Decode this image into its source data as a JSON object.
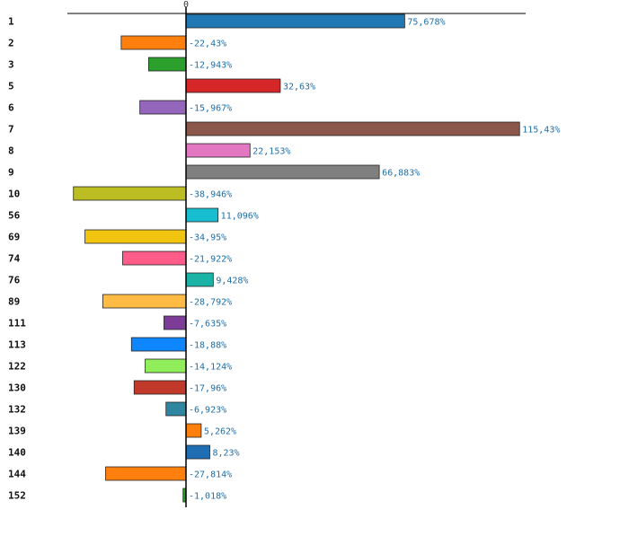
{
  "chart_data": {
    "type": "bar",
    "orientation": "horizontal",
    "zero_label": "0",
    "categories": [
      "1",
      "2",
      "3",
      "5",
      "6",
      "7",
      "8",
      "9",
      "10",
      "56",
      "69",
      "74",
      "76",
      "89",
      "111",
      "113",
      "122",
      "130",
      "132",
      "139",
      "140",
      "144",
      "152"
    ],
    "values": [
      75.678,
      -22.43,
      -12.943,
      32.63,
      -15.967,
      115.43,
      22.153,
      66.883,
      -38.946,
      11.096,
      -34.95,
      -21.922,
      9.428,
      -28.792,
      -7.635,
      -18.88,
      -14.124,
      -17.96,
      -6.923,
      5.262,
      8.23,
      -27.814,
      -1.018
    ],
    "value_labels": [
      "75,678%",
      "-22,43%",
      "-12,943%",
      "32,63%",
      "-15,967%",
      "115,43%",
      "22,153%",
      "66,883%",
      "-38,946%",
      "11,096%",
      "-34,95%",
      "-21,922%",
      "9,428%",
      "-28,792%",
      "-7,635%",
      "-18,88%",
      "-14,124%",
      "-17,96%",
      "-6,923%",
      "5,262%",
      "8,23%",
      "-27,814%",
      "-1,018%"
    ],
    "colors": [
      "#1f77b4",
      "#ff7f0e",
      "#2ca02c",
      "#d62728",
      "#9467bd",
      "#8c564b",
      "#e377c2",
      "#7f7f7f",
      "#bcbd22",
      "#17becf",
      "#f1c40f",
      "#ff5c8a",
      "#1ab3a6",
      "#ffbb44",
      "#7d3c98",
      "#0d86ff",
      "#90ee5a",
      "#c0392b",
      "#2e86a0",
      "#ff7f0e",
      "#1f6eb4",
      "#ff7f0e",
      "#2ca02c"
    ],
    "xlim": [
      -41,
      117
    ],
    "title": "",
    "xlabel": "",
    "ylabel": ""
  }
}
